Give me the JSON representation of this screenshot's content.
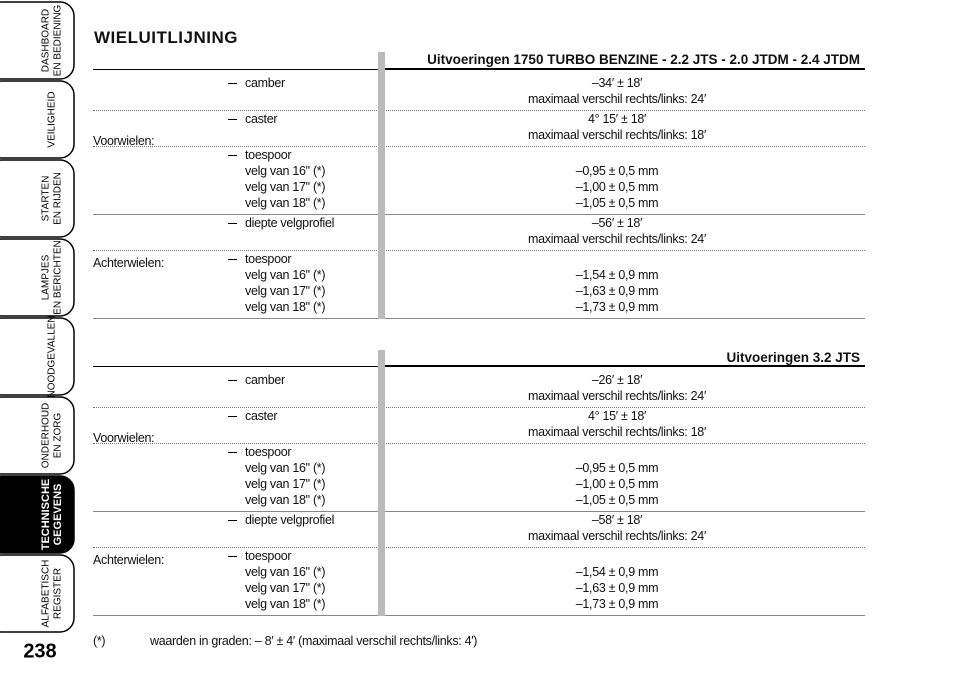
{
  "sidebar": {
    "tabs": [
      [
        "DASHBOARD",
        "EN BEDIENING"
      ],
      [
        "VEILIGHEID"
      ],
      [
        "STARTEN",
        "EN RIJDEN"
      ],
      [
        "LAMPJES",
        "EN BERICHTEN"
      ],
      [
        "NOODGEVALLEN"
      ],
      [
        "ONDERHOUD",
        "EN ZORG"
      ],
      [
        "TECHNISCHE",
        "GEGEVENS"
      ],
      [
        "ALFABETISCH",
        "REGISTER"
      ]
    ],
    "page_number": "238"
  },
  "title": "WIELUITLIJNING",
  "sections": [
    {
      "heading": "Uitvoeringen 1750 TURBO BENZINE - 2.2 JTS - 2.0 JTDM - 2.4 JTDM",
      "groups": [
        {
          "label": "Voorwielen:",
          "items": [
            {
              "label": "camber",
              "values": [
                "–34′ ± 18′",
                "maximaal verschil rechts/links: 24′"
              ]
            },
            {
              "label": "caster",
              "values": [
                "4° 15′ ± 18′",
                "maximaal verschil rechts/links: 18′"
              ]
            },
            {
              "label": "toespoor",
              "sub": [
                "velg van 16\" (*)",
                "velg van 17\" (*)",
                "velg van 18\" (*)"
              ],
              "values": [
                "–0,95 ± 0,5 mm",
                "–1,00 ± 0,5 mm",
                "–1,05 ± 0,5 mm"
              ]
            }
          ]
        },
        {
          "label": "Achterwielen:",
          "items": [
            {
              "label": "diepte velgprofiel",
              "values": [
                "–56′ ± 18′",
                "maximaal verschil rechts/links: 24′"
              ]
            },
            {
              "label": "toespoor",
              "sub": [
                "velg van 16\" (*)",
                "velg van 17\" (*)",
                "velg van 18\" (*)"
              ],
              "values": [
                "–1,54 ± 0,9 mm",
                "–1,63 ± 0,9 mm",
                "–1,73 ± 0,9 mm"
              ]
            }
          ]
        }
      ]
    },
    {
      "heading": "Uitvoeringen 3.2 JTS",
      "groups": [
        {
          "label": "Voorwielen:",
          "items": [
            {
              "label": "camber",
              "values": [
                "–26′ ± 18′",
                "maximaal verschil rechts/links: 24′"
              ]
            },
            {
              "label": "caster",
              "values": [
                "4° 15′ ± 18′",
                "maximaal verschil rechts/links: 18′"
              ]
            },
            {
              "label": "toespoor",
              "sub": [
                "velg van 16\" (*)",
                "velg van 17\" (*)",
                "velg van 18\" (*)"
              ],
              "values": [
                "–0,95 ± 0,5 mm",
                "–1,00 ± 0,5 mm",
                "–1,05 ± 0,5 mm"
              ]
            }
          ]
        },
        {
          "label": "Achterwielen:",
          "items": [
            {
              "label": "diepte velgprofiel",
              "values": [
                "–58′ ± 18′",
                "maximaal verschil rechts/links: 24′"
              ]
            },
            {
              "label": "toespoor",
              "sub": [
                "velg van 16\" (*)",
                "velg van 17\" (*)",
                "velg van 18\" (*)"
              ],
              "values": [
                "–1,54 ± 0,9 mm",
                "–1,63 ± 0,9 mm",
                "–1,73 ± 0,9 mm"
              ]
            }
          ]
        }
      ]
    }
  ],
  "footnote": {
    "marker": "(*)",
    "text": "waarden in graden: – 8′ ± 4′ (maximaal verschil rechts/links: 4′)"
  }
}
